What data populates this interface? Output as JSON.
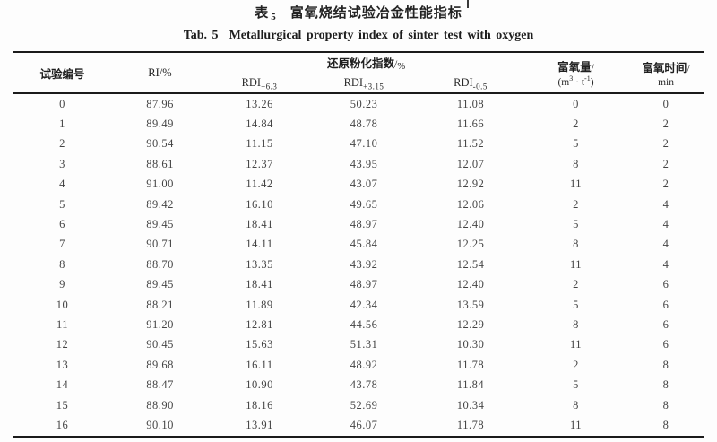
{
  "page": {
    "caption_cn": {
      "label": "表",
      "number": "5",
      "title": "富氧烧结试验冶金性能指标"
    },
    "caption_en": {
      "label": "Tab. 5",
      "title": "Metallurgical property index of sinter test with oxygen"
    }
  },
  "table": {
    "headers": {
      "test_no": "试验编号",
      "ri": "RI/%",
      "rdi_group": {
        "label": "还原粉化指数",
        "unit_slash": "/",
        "unit_pct": "%"
      },
      "rdi_columns": [
        {
          "base": "RDI",
          "sub": "+6.3"
        },
        {
          "base": "RDI",
          "sub": "+3.15"
        },
        {
          "base": "RDI",
          "sub": "-0.5"
        }
      ],
      "oxygen_amount": {
        "line1": "富氧量",
        "slash": "/",
        "unit_open": "(m",
        "unit_exp1": "3",
        "unit_mid": " · t",
        "unit_exp2": "-1",
        "unit_close": ")"
      },
      "oxygen_time": {
        "line1": "富氧时间",
        "slash": "/",
        "line2": "min"
      }
    }
  },
  "chart_data": {
    "type": "table",
    "title": "表5 富氧烧结试验冶金性能指标",
    "title_en": "Tab. 5 Metallurgical property index of sinter test with oxygen",
    "columns": [
      "试验编号",
      "RI/%",
      "RDI+6.3/%",
      "RDI+3.15/%",
      "RDI-0.5/%",
      "富氧量/(m3·t-1)",
      "富氧时间/min"
    ],
    "rows": [
      [
        "0",
        "87.96",
        "13.26",
        "50.23",
        "11.08",
        "0",
        "0"
      ],
      [
        "1",
        "89.49",
        "14.84",
        "48.78",
        "11.66",
        "2",
        "2"
      ],
      [
        "2",
        "90.54",
        "11.15",
        "47.10",
        "11.52",
        "5",
        "2"
      ],
      [
        "3",
        "88.61",
        "12.37",
        "43.95",
        "12.07",
        "8",
        "2"
      ],
      [
        "4",
        "91.00",
        "11.42",
        "43.07",
        "12.92",
        "11",
        "2"
      ],
      [
        "5",
        "89.42",
        "16.10",
        "49.65",
        "12.06",
        "2",
        "4"
      ],
      [
        "6",
        "89.45",
        "18.41",
        "48.97",
        "12.40",
        "5",
        "4"
      ],
      [
        "7",
        "90.71",
        "14.11",
        "45.84",
        "12.25",
        "8",
        "4"
      ],
      [
        "8",
        "88.70",
        "13.35",
        "43.92",
        "12.54",
        "11",
        "4"
      ],
      [
        "9",
        "89.45",
        "18.41",
        "48.97",
        "12.40",
        "2",
        "6"
      ],
      [
        "10",
        "88.21",
        "11.89",
        "42.34",
        "13.59",
        "5",
        "6"
      ],
      [
        "11",
        "91.20",
        "12.81",
        "44.56",
        "12.29",
        "8",
        "6"
      ],
      [
        "12",
        "90.45",
        "15.63",
        "51.31",
        "10.30",
        "11",
        "6"
      ],
      [
        "13",
        "89.68",
        "16.11",
        "48.92",
        "11.78",
        "2",
        "8"
      ],
      [
        "14",
        "88.47",
        "10.90",
        "43.78",
        "11.84",
        "5",
        "8"
      ],
      [
        "15",
        "88.90",
        "18.16",
        "52.69",
        "10.34",
        "8",
        "8"
      ],
      [
        "16",
        "90.10",
        "13.91",
        "46.07",
        "11.78",
        "11",
        "8"
      ]
    ]
  },
  "colors": {
    "rule": "#1b1b1b",
    "text": "#444444",
    "header_text": "#1f1f1f",
    "background": "#fdfdfd"
  }
}
